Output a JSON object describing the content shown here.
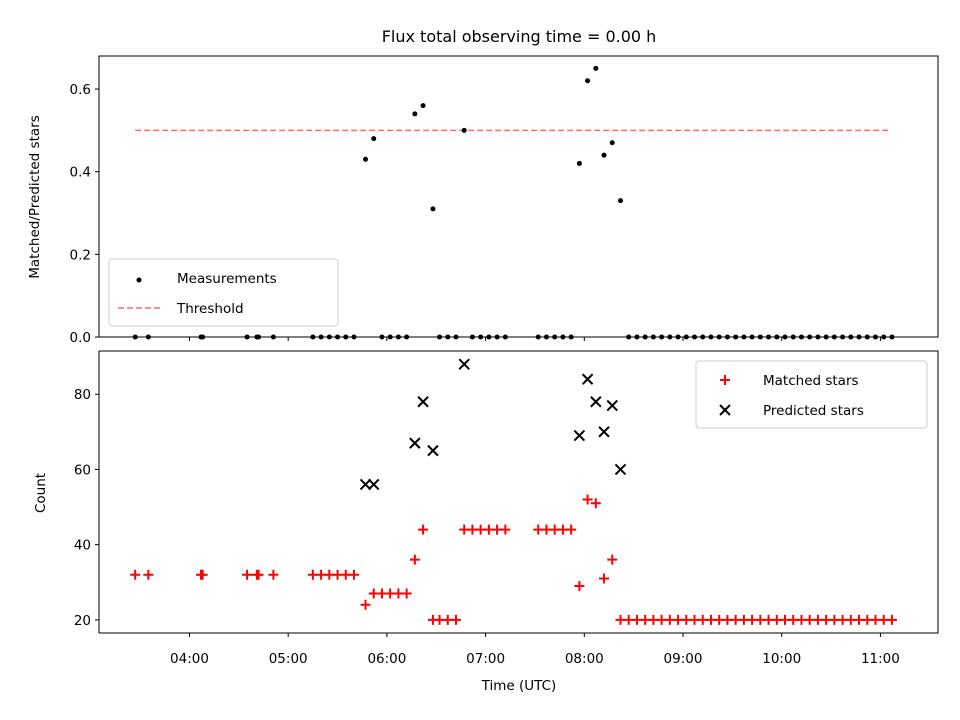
{
  "title": "Flux total observing time = 0.00 h",
  "chart_data": [
    {
      "type": "scatter",
      "panel": "top",
      "ylabel": "Matched/Predicted stars",
      "xlabel": "",
      "ylim": [
        0,
        0.68
      ],
      "yticks": [
        0.0,
        0.2,
        0.4,
        0.6
      ],
      "ytick_labels": [
        "0.0",
        "0.2",
        "0.4",
        "0.6"
      ],
      "legend_position": "lower-left",
      "threshold": 0.5,
      "threshold_x": [
        "03:27",
        "11:05"
      ],
      "series": [
        {
          "name": "Measurements",
          "color": "#000000",
          "marker": "dot",
          "points": [
            [
              "03:27",
              0
            ],
            [
              "03:35",
              0
            ],
            [
              "04:07",
              0
            ],
            [
              "04:08",
              0
            ],
            [
              "04:35",
              0
            ],
            [
              "04:41",
              0
            ],
            [
              "04:42",
              0
            ],
            [
              "04:51",
              0
            ],
            [
              "05:15",
              0
            ],
            [
              "05:20",
              0
            ],
            [
              "05:25",
              0
            ],
            [
              "05:30",
              0
            ],
            [
              "05:35",
              0
            ],
            [
              "05:40",
              0
            ],
            [
              "05:47",
              0.43
            ],
            [
              "05:52",
              0.48
            ],
            [
              "05:57",
              0
            ],
            [
              "06:02",
              0
            ],
            [
              "06:07",
              0
            ],
            [
              "06:12",
              0
            ],
            [
              "06:17",
              0.54
            ],
            [
              "06:22",
              0.56
            ],
            [
              "06:28",
              0.31
            ],
            [
              "06:32",
              0
            ],
            [
              "06:37",
              0
            ],
            [
              "06:42",
              0
            ],
            [
              "06:47",
              0.5
            ],
            [
              "06:52",
              0
            ],
            [
              "06:57",
              0
            ],
            [
              "07:02",
              0
            ],
            [
              "07:07",
              0
            ],
            [
              "07:12",
              0
            ],
            [
              "07:32",
              0
            ],
            [
              "07:37",
              0
            ],
            [
              "07:42",
              0
            ],
            [
              "07:47",
              0
            ],
            [
              "07:52",
              0
            ],
            [
              "07:57",
              0.42
            ],
            [
              "08:02",
              0.62
            ],
            [
              "08:07",
              0.65
            ],
            [
              "08:12",
              0.44
            ],
            [
              "08:17",
              0.47
            ],
            [
              "08:22",
              0.33
            ],
            [
              "08:27",
              0
            ],
            [
              "08:32",
              0
            ],
            [
              "08:37",
              0
            ],
            [
              "08:42",
              0
            ],
            [
              "08:47",
              0
            ],
            [
              "08:52",
              0
            ],
            [
              "08:57",
              0
            ],
            [
              "09:02",
              0
            ],
            [
              "09:07",
              0
            ],
            [
              "09:12",
              0
            ],
            [
              "09:17",
              0
            ],
            [
              "09:22",
              0
            ],
            [
              "09:27",
              0
            ],
            [
              "09:32",
              0
            ],
            [
              "09:37",
              0
            ],
            [
              "09:42",
              0
            ],
            [
              "09:47",
              0
            ],
            [
              "09:52",
              0
            ],
            [
              "09:57",
              0
            ],
            [
              "10:02",
              0
            ],
            [
              "10:07",
              0
            ],
            [
              "10:12",
              0
            ],
            [
              "10:17",
              0
            ],
            [
              "10:22",
              0
            ],
            [
              "10:27",
              0
            ],
            [
              "10:32",
              0
            ],
            [
              "10:37",
              0
            ],
            [
              "10:42",
              0
            ],
            [
              "10:47",
              0
            ],
            [
              "10:52",
              0
            ],
            [
              "10:57",
              0
            ],
            [
              "11:02",
              0
            ],
            [
              "11:07",
              0
            ]
          ]
        },
        {
          "name": "Threshold",
          "color": "#ff6b6b",
          "marker": "dashed-line"
        }
      ]
    },
    {
      "type": "scatter",
      "panel": "bottom",
      "ylabel": "Count",
      "xlabel": "Time (UTC)",
      "ylim": [
        16.5,
        91.5
      ],
      "yticks": [
        20,
        40,
        60,
        80
      ],
      "ytick_labels": [
        "20",
        "40",
        "60",
        "80"
      ],
      "xticks": [
        "04:00",
        "05:00",
        "06:00",
        "07:00",
        "08:00",
        "09:00",
        "10:00",
        "11:00"
      ],
      "xlim": [
        "03:05",
        "11:35"
      ],
      "legend_position": "upper-right",
      "series": [
        {
          "name": "Matched stars",
          "color": "#ff0000",
          "marker": "plus",
          "points": [
            [
              "03:27",
              32
            ],
            [
              "03:35",
              32
            ],
            [
              "04:07",
              32
            ],
            [
              "04:08",
              32
            ],
            [
              "04:35",
              32
            ],
            [
              "04:41",
              32
            ],
            [
              "04:42",
              32
            ],
            [
              "04:51",
              32
            ],
            [
              "05:15",
              32
            ],
            [
              "05:20",
              32
            ],
            [
              "05:25",
              32
            ],
            [
              "05:30",
              32
            ],
            [
              "05:35",
              32
            ],
            [
              "05:40",
              32
            ],
            [
              "05:47",
              24
            ],
            [
              "05:52",
              27
            ],
            [
              "05:57",
              27
            ],
            [
              "06:02",
              27
            ],
            [
              "06:07",
              27
            ],
            [
              "06:12",
              27
            ],
            [
              "06:17",
              36
            ],
            [
              "06:22",
              44
            ],
            [
              "06:28",
              20
            ],
            [
              "06:32",
              20
            ],
            [
              "06:37",
              20
            ],
            [
              "06:42",
              20
            ],
            [
              "06:47",
              44
            ],
            [
              "06:52",
              44
            ],
            [
              "06:57",
              44
            ],
            [
              "07:02",
              44
            ],
            [
              "07:07",
              44
            ],
            [
              "07:12",
              44
            ],
            [
              "07:32",
              44
            ],
            [
              "07:37",
              44
            ],
            [
              "07:42",
              44
            ],
            [
              "07:47",
              44
            ],
            [
              "07:52",
              44
            ],
            [
              "07:57",
              29
            ],
            [
              "08:02",
              52
            ],
            [
              "08:07",
              51
            ],
            [
              "08:12",
              31
            ],
            [
              "08:17",
              36
            ],
            [
              "08:22",
              20
            ],
            [
              "08:27",
              20
            ],
            [
              "08:32",
              20
            ],
            [
              "08:37",
              20
            ],
            [
              "08:42",
              20
            ],
            [
              "08:47",
              20
            ],
            [
              "08:52",
              20
            ],
            [
              "08:57",
              20
            ],
            [
              "09:02",
              20
            ],
            [
              "09:07",
              20
            ],
            [
              "09:12",
              20
            ],
            [
              "09:17",
              20
            ],
            [
              "09:22",
              20
            ],
            [
              "09:27",
              20
            ],
            [
              "09:32",
              20
            ],
            [
              "09:37",
              20
            ],
            [
              "09:42",
              20
            ],
            [
              "09:47",
              20
            ],
            [
              "09:52",
              20
            ],
            [
              "09:57",
              20
            ],
            [
              "10:02",
              20
            ],
            [
              "10:07",
              20
            ],
            [
              "10:12",
              20
            ],
            [
              "10:17",
              20
            ],
            [
              "10:22",
              20
            ],
            [
              "10:27",
              20
            ],
            [
              "10:32",
              20
            ],
            [
              "10:37",
              20
            ],
            [
              "10:42",
              20
            ],
            [
              "10:47",
              20
            ],
            [
              "10:52",
              20
            ],
            [
              "10:57",
              20
            ],
            [
              "11:02",
              20
            ],
            [
              "11:07",
              20
            ]
          ]
        },
        {
          "name": "Predicted stars",
          "color": "#000000",
          "marker": "x",
          "points": [
            [
              "05:47",
              56
            ],
            [
              "05:52",
              56
            ],
            [
              "06:17",
              67
            ],
            [
              "06:22",
              78
            ],
            [
              "06:28",
              65
            ],
            [
              "06:47",
              88
            ],
            [
              "07:57",
              69
            ],
            [
              "08:02",
              84
            ],
            [
              "08:07",
              78
            ],
            [
              "08:12",
              70
            ],
            [
              "08:17",
              77
            ],
            [
              "08:22",
              60
            ]
          ]
        }
      ]
    }
  ]
}
